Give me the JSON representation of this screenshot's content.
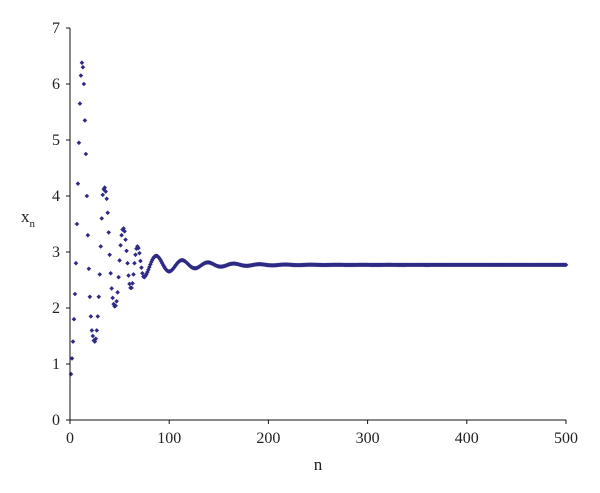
{
  "chart_data": {
    "type": "scatter",
    "title": "",
    "xlabel": "n",
    "ylabel": {
      "main": "x",
      "subscript": "n"
    },
    "xlim": [
      0,
      500
    ],
    "ylim": [
      0,
      7
    ],
    "xticks": [
      "0",
      "100",
      "200",
      "300",
      "400",
      "500"
    ],
    "yticks": [
      "0",
      "1",
      "2",
      "3",
      "4",
      "5",
      "6",
      "7"
    ],
    "grid": false,
    "legend": "none",
    "marker": "diamond",
    "colors": {
      "points": "#2e2a86",
      "axes": "#111111"
    },
    "n_range": [
      1,
      500
    ],
    "equilibrium": 2.77,
    "series": [
      {
        "points": [
          [
            1,
            0.82
          ],
          [
            2,
            1.1
          ],
          [
            3,
            1.4
          ],
          [
            4,
            1.8
          ],
          [
            5,
            2.25
          ],
          [
            6,
            2.8
          ],
          [
            7,
            3.5
          ],
          [
            8,
            4.22
          ],
          [
            9,
            4.95
          ],
          [
            10,
            5.65
          ],
          [
            11,
            6.15
          ],
          [
            12,
            6.38
          ],
          [
            13,
            6.3
          ],
          [
            14,
            6.0
          ],
          [
            15,
            5.35
          ],
          [
            16,
            4.75
          ],
          [
            17,
            4.0
          ],
          [
            18,
            3.3
          ],
          [
            19,
            2.7
          ],
          [
            20,
            2.2
          ],
          [
            21,
            1.85
          ],
          [
            22,
            1.6
          ],
          [
            23,
            1.5
          ],
          [
            24,
            1.42
          ],
          [
            25,
            1.4
          ],
          [
            26,
            1.45
          ],
          [
            27,
            1.6
          ],
          [
            28,
            1.85
          ],
          [
            29,
            2.2
          ],
          [
            30,
            2.6
          ],
          [
            31,
            3.1
          ],
          [
            32,
            3.6
          ],
          [
            33,
            4.02
          ],
          [
            34,
            4.12
          ],
          [
            35,
            4.15
          ],
          [
            36,
            4.08
          ],
          [
            37,
            3.95
          ],
          [
            38,
            3.7
          ],
          [
            39,
            3.35
          ],
          [
            40,
            2.95
          ],
          [
            41,
            2.62
          ],
          [
            42,
            2.35
          ],
          [
            43,
            2.18
          ],
          [
            44,
            2.07
          ],
          [
            45,
            2.03
          ],
          [
            46,
            2.04
          ],
          [
            47,
            2.12
          ],
          [
            48,
            2.28
          ],
          [
            49,
            2.55
          ],
          [
            50,
            2.85
          ],
          [
            51,
            3.12
          ],
          [
            52,
            3.3
          ],
          [
            53,
            3.4
          ],
          [
            54,
            3.42
          ],
          [
            55,
            3.37
          ],
          [
            56,
            3.22
          ],
          [
            57,
            3.02
          ],
          [
            58,
            2.8
          ],
          [
            59,
            2.58
          ],
          [
            60,
            2.43
          ],
          [
            61,
            2.36
          ],
          [
            62,
            2.36
          ],
          [
            63,
            2.44
          ],
          [
            64,
            2.6
          ],
          [
            65,
            2.8
          ],
          [
            66,
            2.95
          ],
          [
            67,
            3.06
          ],
          [
            68,
            3.1
          ],
          [
            69,
            3.07
          ],
          [
            70,
            2.98
          ],
          [
            71,
            2.84
          ],
          [
            72,
            2.72
          ],
          [
            73,
            2.62
          ],
          [
            74,
            2.56
          ],
          [
            75,
            2.55
          ]
        ]
      }
    ]
  }
}
